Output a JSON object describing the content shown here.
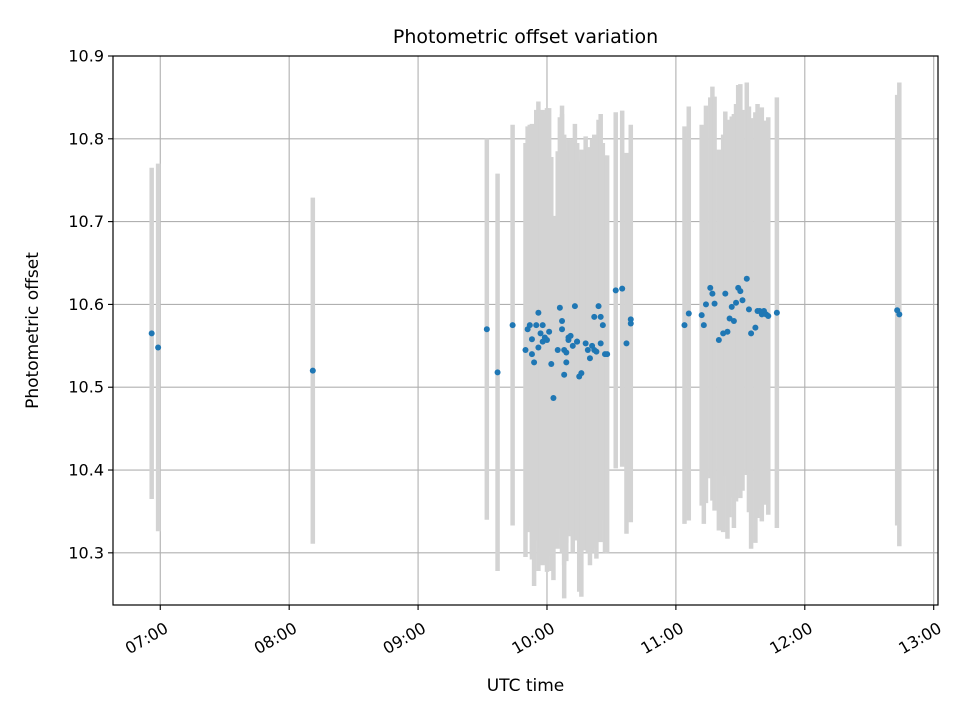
{
  "chart_data": {
    "type": "scatter",
    "title": "Photometric offset variation",
    "xlabel": "UTC time",
    "ylabel": "Photometric offset",
    "xlim": [
      "06:38",
      "13:02"
    ],
    "ylim": [
      10.237,
      10.9
    ],
    "grid": true,
    "legend": "none",
    "x_ticks": [
      "07:00",
      "08:00",
      "09:00",
      "10:00",
      "11:00",
      "12:00",
      "13:00"
    ],
    "y_ticks": [
      "10.3",
      "10.4",
      "10.5",
      "10.6",
      "10.7",
      "10.8",
      "10.9"
    ],
    "colors": {
      "point": "#1f77b4",
      "errorbar": "#d3d3d3",
      "grid": "#b0b0b0"
    },
    "series": [
      {
        "x": [
          "06:56",
          "06:59",
          "08:11",
          "09:32",
          "09:37",
          "09:44",
          "09:50",
          "09:51",
          "09:52",
          "09:53",
          "09:53",
          "09:54",
          "09:55",
          "09:56",
          "09:56",
          "09:57",
          "09:58",
          "09:58",
          "09:59",
          "10:00",
          "10:01",
          "10:02",
          "10:03",
          "10:05",
          "10:06",
          "10:07",
          "10:07",
          "10:08",
          "10:08",
          "10:09",
          "10:09",
          "10:10",
          "10:10",
          "10:11",
          "10:12",
          "10:13",
          "10:14",
          "10:14",
          "10:15",
          "10:16",
          "10:18",
          "10:19",
          "10:20",
          "10:21",
          "10:22",
          "10:22",
          "10:23",
          "10:24",
          "10:25",
          "10:25",
          "10:26",
          "10:27",
          "10:28",
          "10:32",
          "10:35",
          "10:37",
          "10:39",
          "10:39",
          "11:04",
          "11:06",
          "11:12",
          "11:13",
          "11:14",
          "11:16",
          "11:17",
          "11:18",
          "11:20",
          "11:22",
          "11:23",
          "11:24",
          "11:25",
          "11:26",
          "11:27",
          "11:28",
          "11:29",
          "11:30",
          "11:31",
          "11:33",
          "11:34",
          "11:35",
          "11:37",
          "11:38",
          "11:39",
          "11:40",
          "11:41",
          "11:42",
          "11:43",
          "11:47",
          "12:43",
          "12:44"
        ],
        "y": [
          10.565,
          10.548,
          10.52,
          10.57,
          10.518,
          10.575,
          10.545,
          10.57,
          10.575,
          10.54,
          10.558,
          10.53,
          10.575,
          10.59,
          10.548,
          10.565,
          10.555,
          10.575,
          10.56,
          10.557,
          10.567,
          10.528,
          10.487,
          10.545,
          10.596,
          10.58,
          10.57,
          10.515,
          10.545,
          10.53,
          10.542,
          10.557,
          10.56,
          10.562,
          10.55,
          10.598,
          10.555,
          10.555,
          10.513,
          10.517,
          10.553,
          10.545,
          10.535,
          10.55,
          10.585,
          10.545,
          10.543,
          10.598,
          10.585,
          10.553,
          10.575,
          10.54,
          10.54,
          10.617,
          10.619,
          10.553,
          10.582,
          10.577,
          10.575,
          10.589,
          10.587,
          10.575,
          10.6,
          10.62,
          10.613,
          10.601,
          10.557,
          10.565,
          10.613,
          10.567,
          10.583,
          10.597,
          10.58,
          10.602,
          10.62,
          10.616,
          10.605,
          10.631,
          10.594,
          10.565,
          10.572,
          10.592,
          10.592,
          10.588,
          10.592,
          10.588,
          10.586,
          10.59,
          10.593,
          10.588
        ],
        "err": [
          0.2,
          0.222,
          0.209,
          0.23,
          0.24,
          0.242,
          0.25,
          0.245,
          0.242,
          0.248,
          0.26,
          0.27,
          0.26,
          0.255,
          0.27,
          0.26,
          0.27,
          0.26,
          0.272,
          0.28,
          0.27,
          0.25,
          0.22,
          0.24,
          0.23,
          0.25,
          0.27,
          0.27,
          0.26,
          0.24,
          0.23,
          0.23,
          0.24,
          0.235,
          0.25,
          0.22,
          0.24,
          0.24,
          0.26,
          0.27,
          0.25,
          0.245,
          0.25,
          0.25,
          0.22,
          0.24,
          0.25,
          0.225,
          0.245,
          0.24,
          0.22,
          0.24,
          0.24,
          0.215,
          0.215,
          0.23,
          0.23,
          0.24,
          0.24,
          0.25,
          0.23,
          0.24,
          0.24,
          0.23,
          0.25,
          0.25,
          0.23,
          0.24,
          0.22,
          0.25,
          0.24,
          0.23,
          0.25,
          0.24,
          0.245,
          0.25,
          0.23,
          0.237,
          0.245,
          0.26,
          0.26,
          0.25,
          0.24,
          0.25,
          0.23,
          0.23,
          0.24,
          0.26,
          0.26,
          0.28
        ]
      }
    ]
  }
}
